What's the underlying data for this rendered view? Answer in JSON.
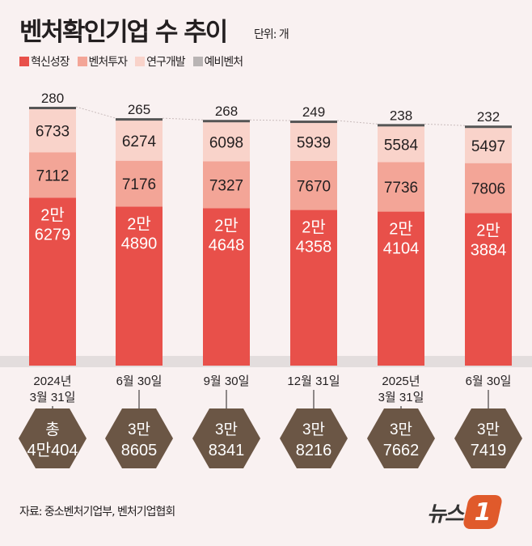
{
  "title": "벤처확인기업 수 추이",
  "unit": "단위: 개",
  "source": "자료: 중소벤처기업부, 벤처기업협회",
  "logo": "뉴스1",
  "chart_data": {
    "type": "bar",
    "stacked": true,
    "title": "벤처확인기업 수 추이",
    "categories": [
      [
        "2024년",
        "3월 31일"
      ],
      [
        "6월 30일"
      ],
      [
        "9월 30일"
      ],
      [
        "12월 31일"
      ],
      [
        "2025년",
        "3월 31일"
      ],
      [
        "6월 30일"
      ]
    ],
    "series": [
      {
        "name": "혁신성장",
        "color": "#e8504a",
        "values": [
          26279,
          24890,
          24648,
          24358,
          24104,
          23884
        ],
        "labels": [
          [
            "2만",
            "6279"
          ],
          [
            "2만",
            "4890"
          ],
          [
            "2만",
            "4648"
          ],
          [
            "2만",
            "4358"
          ],
          [
            "2만",
            "4104"
          ],
          [
            "2만",
            "3884"
          ]
        ]
      },
      {
        "name": "벤처투자",
        "color": "#f3a597",
        "values": [
          7112,
          7176,
          7327,
          7670,
          7736,
          7806
        ]
      },
      {
        "name": "연구개발",
        "color": "#f9d3ca",
        "values": [
          6733,
          6274,
          6098,
          5939,
          5584,
          5497
        ]
      },
      {
        "name": "예비벤처",
        "color": "#b9b4b4",
        "values": [
          280,
          265,
          268,
          249,
          238,
          232
        ]
      }
    ],
    "totals": [
      [
        "총",
        "4만404"
      ],
      [
        "3만",
        "8605"
      ],
      [
        "3만",
        "8341"
      ],
      [
        "3만",
        "8216"
      ],
      [
        "3만",
        "7662"
      ],
      [
        "3만",
        "7419"
      ]
    ],
    "legend": "top-left"
  }
}
